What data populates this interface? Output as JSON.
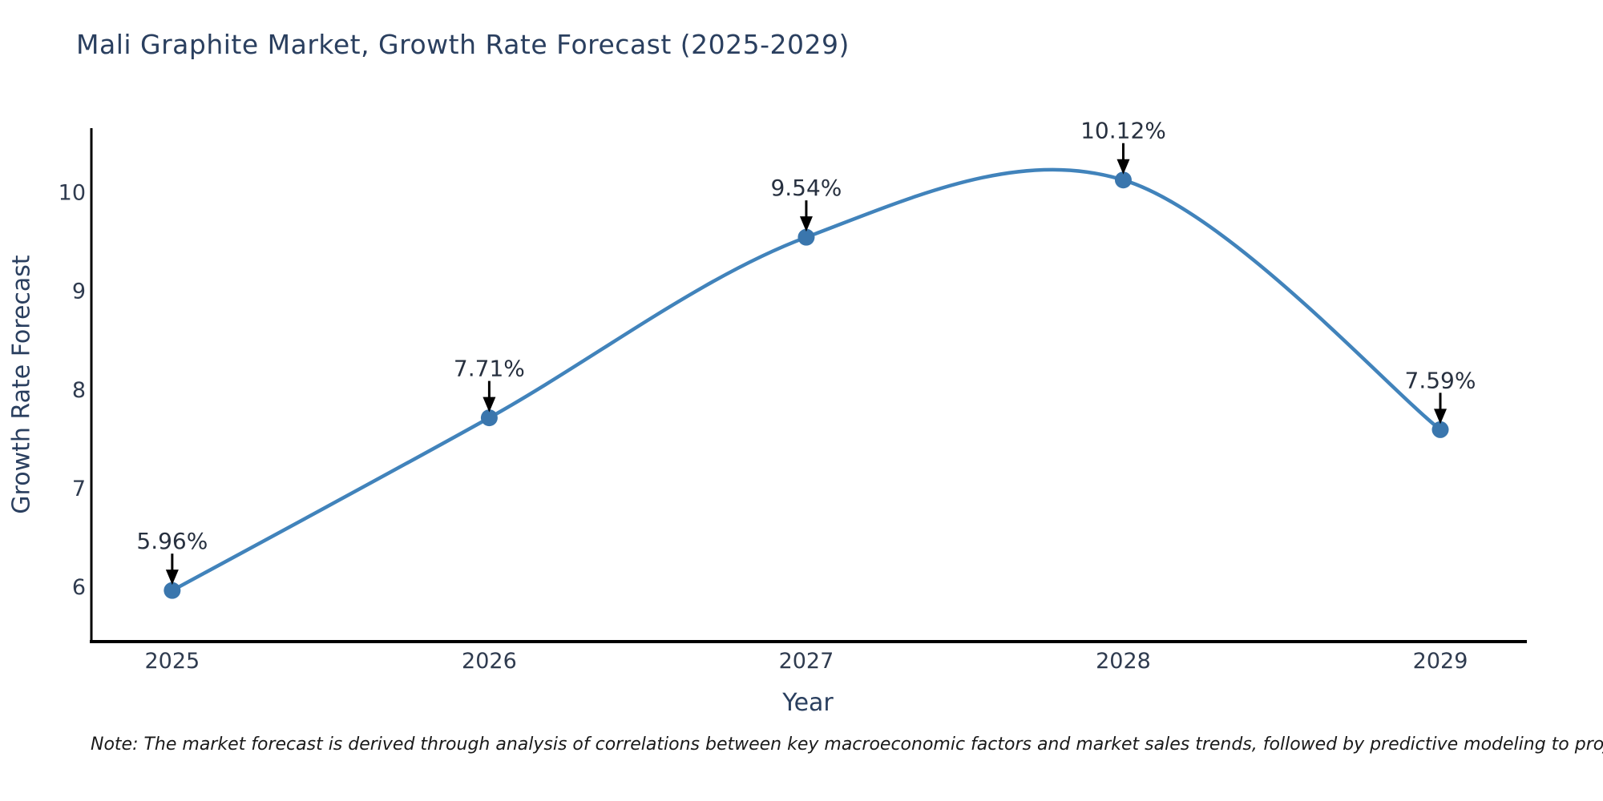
{
  "chart_data": {
    "type": "line",
    "title": "Mali Graphite Market, Growth Rate Forecast (2025-2029)",
    "xlabel": "Year",
    "ylabel": "Growth Rate Forecast",
    "x": [
      2025,
      2026,
      2027,
      2028,
      2029
    ],
    "series": [
      {
        "name": "Growth Rate Forecast",
        "values": [
          5.96,
          7.71,
          9.54,
          10.12,
          7.59
        ]
      }
    ],
    "point_labels": [
      "5.96%",
      "7.71%",
      "9.54%",
      "10.12%",
      "7.59%"
    ],
    "xticks": [
      2025,
      2026,
      2027,
      2028,
      2029
    ],
    "yticks": [
      6,
      7,
      8,
      9,
      10
    ],
    "xlim": [
      2024.745,
      2029.273
    ],
    "ylim": [
      5.45,
      10.97
    ],
    "grid": false,
    "legend": false,
    "line_shape": "spline",
    "annotation_arrows": true
  },
  "note": "Note: The market forecast is derived through analysis of correlations between key macroeconomic factors and market sales trends, followed by predictive modeling to project future sales.",
  "colors": {
    "background": "#ffffff",
    "line": "#4183bb",
    "marker": "#3a76ad",
    "title_text": "#2a3f5f",
    "axis_title_text": "#2a3f5f",
    "tick_text": "#2f3b4f",
    "annotation_text": "#27303f",
    "spine": "#000000",
    "arrow": "#000000"
  }
}
